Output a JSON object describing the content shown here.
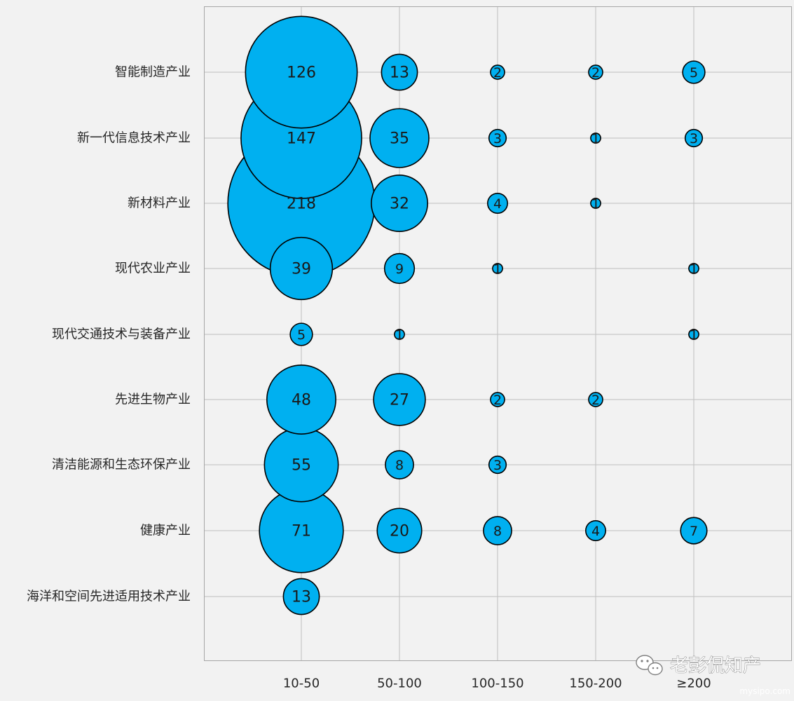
{
  "chart_data": {
    "type": "bubble",
    "title": "",
    "xlabel": "",
    "ylabel": "",
    "x_categories": [
      "10-50",
      "50-100",
      "100-150",
      "150-200",
      "≥200"
    ],
    "y_categories": [
      "智能制造产业",
      "新一代信息技术产业",
      "新材料产业",
      "现代农业产业",
      "现代交通技术与装备产业",
      "先进生物产业",
      "清洁能源和生态环保产业",
      "健康产业",
      "海洋和空间先进适用技术产业"
    ],
    "points": [
      {
        "x": "10-50",
        "y": "智能制造产业",
        "value": 126
      },
      {
        "x": "50-100",
        "y": "智能制造产业",
        "value": 13
      },
      {
        "x": "100-150",
        "y": "智能制造产业",
        "value": 2
      },
      {
        "x": "150-200",
        "y": "智能制造产业",
        "value": 2
      },
      {
        "x": "≥200",
        "y": "智能制造产业",
        "value": 5
      },
      {
        "x": "10-50",
        "y": "新一代信息技术产业",
        "value": 147
      },
      {
        "x": "50-100",
        "y": "新一代信息技术产业",
        "value": 35
      },
      {
        "x": "100-150",
        "y": "新一代信息技术产业",
        "value": 3
      },
      {
        "x": "150-200",
        "y": "新一代信息技术产业",
        "value": 1
      },
      {
        "x": "≥200",
        "y": "新一代信息技术产业",
        "value": 3
      },
      {
        "x": "10-50",
        "y": "新材料产业",
        "value": 218
      },
      {
        "x": "50-100",
        "y": "新材料产业",
        "value": 32
      },
      {
        "x": "100-150",
        "y": "新材料产业",
        "value": 4
      },
      {
        "x": "150-200",
        "y": "新材料产业",
        "value": 1
      },
      {
        "x": "10-50",
        "y": "现代农业产业",
        "value": 39
      },
      {
        "x": "50-100",
        "y": "现代农业产业",
        "value": 9
      },
      {
        "x": "100-150",
        "y": "现代农业产业",
        "value": 1
      },
      {
        "x": "≥200",
        "y": "现代农业产业",
        "value": 1
      },
      {
        "x": "10-50",
        "y": "现代交通技术与装备产业",
        "value": 5
      },
      {
        "x": "50-100",
        "y": "现代交通技术与装备产业",
        "value": 1
      },
      {
        "x": "≥200",
        "y": "现代交通技术与装备产业",
        "value": 1
      },
      {
        "x": "10-50",
        "y": "先进生物产业",
        "value": 48
      },
      {
        "x": "50-100",
        "y": "先进生物产业",
        "value": 27
      },
      {
        "x": "100-150",
        "y": "先进生物产业",
        "value": 2
      },
      {
        "x": "150-200",
        "y": "先进生物产业",
        "value": 2
      },
      {
        "x": "10-50",
        "y": "清洁能源和生态环保产业",
        "value": 55
      },
      {
        "x": "50-100",
        "y": "清洁能源和生态环保产业",
        "value": 8
      },
      {
        "x": "100-150",
        "y": "清洁能源和生态环保产业",
        "value": 3
      },
      {
        "x": "10-50",
        "y": "健康产业",
        "value": 71
      },
      {
        "x": "50-100",
        "y": "健康产业",
        "value": 20
      },
      {
        "x": "100-150",
        "y": "健康产业",
        "value": 8
      },
      {
        "x": "150-200",
        "y": "健康产业",
        "value": 4
      },
      {
        "x": "≥200",
        "y": "健康产业",
        "value": 7
      },
      {
        "x": "10-50",
        "y": "海洋和空间先进适用技术产业",
        "value": 13
      }
    ],
    "bubble_color": "#00b0f0",
    "bubble_outline": "#000000",
    "grid": true,
    "legend": "none"
  },
  "watermark": {
    "text": "老彭侃知产",
    "url": "mysipo.com",
    "icon": "wechat-icon"
  }
}
